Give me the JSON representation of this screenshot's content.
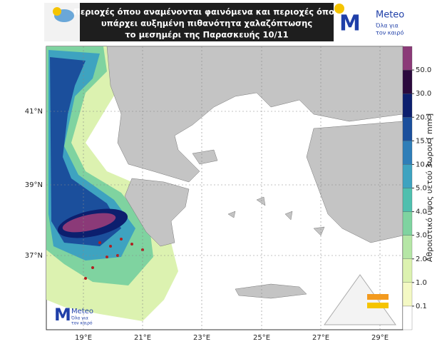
{
  "header": {
    "title_lines": [
      "Περιοχές όπου αναμένονται φαινόμενα και περιοχές όπου",
      "υπάρχει αυξημένη πιθανότητα χαλαζόπτωσης",
      "το μεσημέρι της Παρασκευής 10/11"
    ],
    "logo": {
      "name": "Meteo",
      "tagline": [
        "Όλα για",
        "τον καιρό"
      ]
    }
  },
  "map": {
    "lat_labels": [
      "41°N",
      "39°N",
      "37°N"
    ],
    "lon_labels": [
      "19°E",
      "21°E",
      "23°E",
      "25°E",
      "27°E",
      "29°E"
    ],
    "logo": {
      "name": "Meteo",
      "tagline": [
        "Όλα για",
        "τον καιρό"
      ]
    }
  },
  "colorbar": {
    "title": "Αθροιστικό ύψος υετού 3ωρου [ mm ]",
    "ticks": [
      0.1,
      {
        "value": 1,
        "label": "1.0"
      },
      {
        "value": 2,
        "label": "2.0"
      },
      {
        "value": 3,
        "label": "3.0"
      },
      {
        "value": 4,
        "label": "4.0"
      },
      {
        "value": 5,
        "label": "5.0"
      },
      {
        "value": 10,
        "label": "10.0"
      },
      {
        "value": 15,
        "label": "15.0"
      },
      {
        "value": 20,
        "label": "20.0"
      },
      {
        "value": 30,
        "label": "30.0"
      },
      {
        "value": 50,
        "label": "50.0"
      }
    ],
    "colors": [
      "#ffffff",
      "#f4f9c4",
      "#dcf2b0",
      "#b5e6a6",
      "#7fd3a0",
      "#4fbfae",
      "#3ea3c0",
      "#2f7eb8",
      "#1b4f9c",
      "#0c1f6e",
      "#2b0a3d",
      "#8b3a78"
    ]
  }
}
